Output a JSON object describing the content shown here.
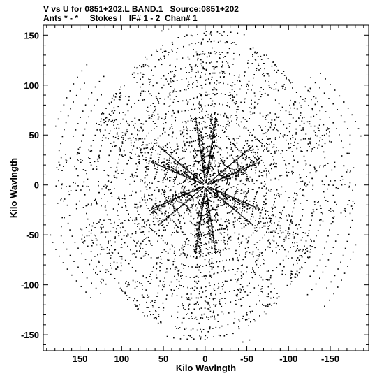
{
  "header": {
    "line1": "V vs U for 0851+202.L BAND.1   Source:0851+202",
    "line2": "Ants * - *     Stokes I   IF# 1 - 2  Chan# 1"
  },
  "chart_data": {
    "type": "scatter",
    "title": "V vs U for 0851+202.L BAND.1   Source:0851+202",
    "subtitle": "Ants * - *     Stokes I   IF# 1 - 2  Chan# 1",
    "xlabel": "Kilo Wavlngth",
    "ylabel": "Kilo Wavlngth",
    "xlim": [
      194,
      -196
    ],
    "ylim": [
      -166,
      160
    ],
    "x_ticks": [
      150,
      100,
      50,
      0,
      -50,
      -100,
      -150
    ],
    "y_ticks": [
      150,
      100,
      50,
      0,
      -50,
      -100,
      -150
    ],
    "grid": false,
    "legend": "none",
    "marker_color": "#000000",
    "uv_coverage": {
      "symmetry": "each point (u, v) is mirrored at (-u, -v)",
      "arm_tracks": [
        {
          "angle_deg": 90,
          "length_klambda": 155
        },
        {
          "angle_deg": 60,
          "length_klambda": 150
        },
        {
          "angle_deg": 30,
          "length_klambda": 145
        },
        {
          "angle_deg": 0,
          "length_klambda": 180
        },
        {
          "angle_deg": -30,
          "length_klambda": 160
        },
        {
          "angle_deg": -60,
          "length_klambda": 150
        }
      ],
      "inner_tracks": [
        {
          "angle_deg": 20,
          "length_klambda": 75
        },
        {
          "angle_deg": -20,
          "length_klambda": 70
        },
        {
          "angle_deg": 80,
          "length_klambda": 60
        },
        {
          "angle_deg": -80,
          "length_klambda": 70
        }
      ],
      "max_extent_klambda": 190
    }
  }
}
